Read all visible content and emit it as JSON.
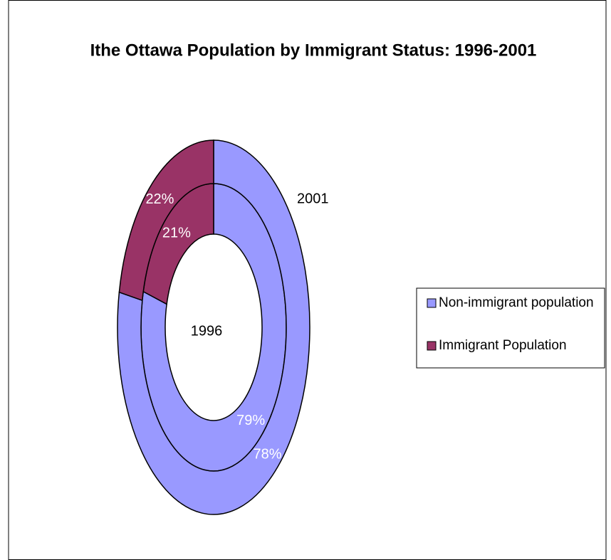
{
  "chart_data": {
    "type": "donut",
    "title": "Ithe Ottawa Population by Immigrant Status: 1996-2001",
    "categories": [
      "Non-immigrant population",
      "Immigrant Population"
    ],
    "colors": [
      "#9999ff",
      "#993366"
    ],
    "series": [
      {
        "name": "1996",
        "values": [
          79,
          21
        ],
        "value_labels": [
          "79%",
          "21%"
        ]
      },
      {
        "name": "2001",
        "values": [
          78,
          22
        ],
        "value_labels": [
          "78%",
          "22%"
        ]
      }
    ],
    "legend": "right"
  }
}
